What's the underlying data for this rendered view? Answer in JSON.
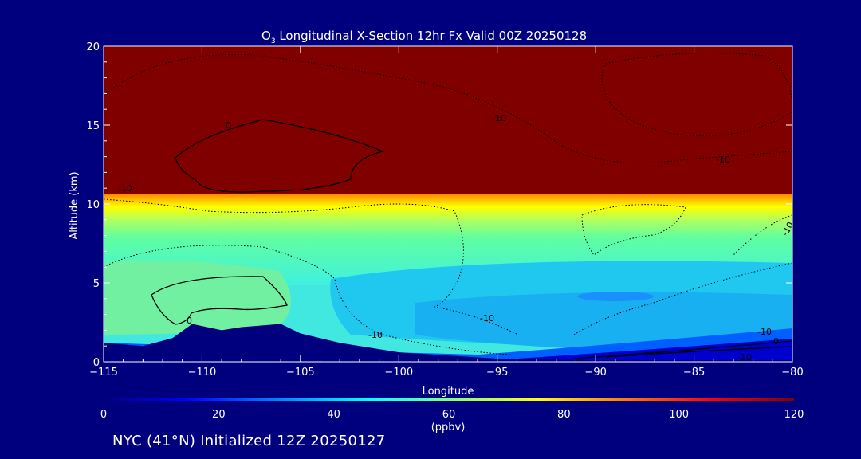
{
  "chart_data": {
    "type": "heatmap",
    "title_main": "O",
    "title_sub": "3",
    "title_rest": " Longitudinal X-Section 12hr  Fx Valid 00Z 20250128",
    "xlabel": "Longitude",
    "ylabel": "Altitude (km)",
    "xlim": [
      -115,
      -80
    ],
    "ylim": [
      0,
      20
    ],
    "x_ticks": [
      -115,
      -110,
      -105,
      -100,
      -95,
      -90,
      -85,
      -80
    ],
    "y_ticks": [
      0,
      5,
      10,
      15,
      20
    ],
    "colorbar": {
      "range": [
        0,
        120
      ],
      "ticks": [
        0,
        20,
        40,
        60,
        80,
        100,
        120
      ],
      "unit": "(ppbv)",
      "colors": [
        "#00007f",
        "#0000ff",
        "#0080ff",
        "#00ffff",
        "#80ff80",
        "#ffff00",
        "#ff8000",
        "#ff0000",
        "#800000"
      ]
    },
    "grid": false,
    "contour_labels": [
      "0",
      "-10",
      "-10",
      "-10",
      "-10",
      "0",
      "-10",
      "-10",
      "-10",
      "0",
      "-10"
    ],
    "terrain": {
      "x": [
        -115,
        -113,
        -111.5,
        -110.5,
        -109,
        -108,
        -106,
        -105,
        -103,
        -100,
        -95,
        -90,
        -85,
        -80
      ],
      "y": [
        1.2,
        1.0,
        1.5,
        2.4,
        2.0,
        2.2,
        2.4,
        1.8,
        1.2,
        0.6,
        0.2,
        0.1,
        0.1,
        0.1
      ]
    }
  },
  "footer": "NYC (41°N) Initialized 12Z 20250127"
}
